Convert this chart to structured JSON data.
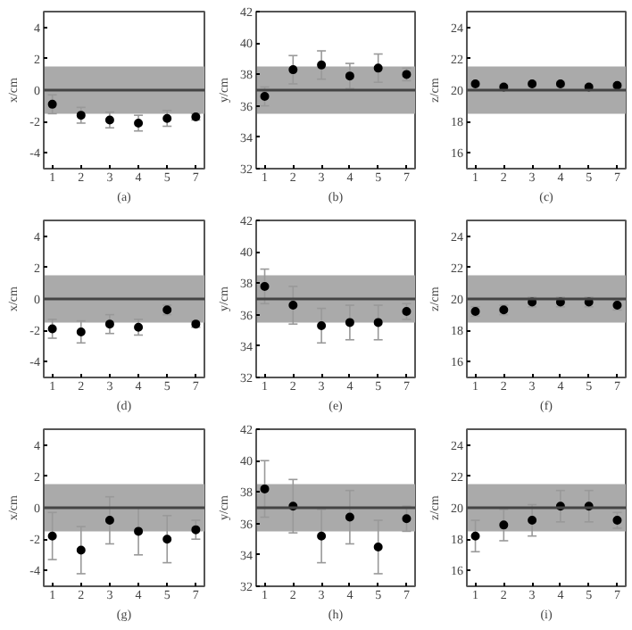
{
  "chart_data": [
    {
      "type": "scatter",
      "xlabel": "(a)",
      "ylabel": "x/cm",
      "categories": [
        "1",
        "2",
        "3",
        "4",
        "5",
        "7"
      ],
      "color": "#000000",
      "marker": "circle",
      "values": [
        -0.9,
        -1.6,
        -1.9,
        -2.1,
        -1.8,
        -1.7
      ],
      "errors": [
        0.6,
        0.5,
        0.5,
        0.5,
        0.5,
        0.2
      ],
      "ylim": [
        -5,
        5
      ],
      "yticks": [
        -4,
        -2,
        0,
        2,
        4
      ],
      "bands": [
        {
          "axis": "y",
          "from": -1.5,
          "to": 1.5,
          "color": "#aaaaaa"
        }
      ],
      "ref_lines": [
        {
          "axis": "y",
          "value": 0,
          "color": "#444444"
        }
      ]
    },
    {
      "type": "scatter",
      "xlabel": "(b)",
      "ylabel": "y/cm",
      "categories": [
        "1",
        "2",
        "3",
        "4",
        "5",
        "7"
      ],
      "color": "#000000",
      "marker": "circle",
      "values": [
        36.6,
        38.3,
        38.6,
        37.9,
        38.4,
        38.0
      ],
      "errors": [
        0.6,
        0.9,
        0.9,
        0.8,
        0.9,
        0.4
      ],
      "ylim": [
        32,
        42
      ],
      "yticks": [
        32,
        34,
        36,
        38,
        40,
        42
      ],
      "bands": [
        {
          "axis": "y",
          "from": 35.5,
          "to": 38.5,
          "color": "#aaaaaa"
        }
      ],
      "ref_lines": [
        {
          "axis": "y",
          "value": 37,
          "color": "#444444"
        }
      ]
    },
    {
      "type": "scatter",
      "xlabel": "(c)",
      "ylabel": "z/cm",
      "categories": [
        "1",
        "2",
        "3",
        "4",
        "5",
        "7"
      ],
      "color": "#000000",
      "marker": "circle",
      "values": [
        20.4,
        20.2,
        20.4,
        20.4,
        20.2,
        20.3
      ],
      "errors": [
        0.15,
        0.15,
        0.15,
        0.15,
        0.15,
        0.15
      ],
      "ylim": [
        15,
        25
      ],
      "yticks": [
        16,
        18,
        20,
        22,
        24
      ],
      "bands": [
        {
          "axis": "y",
          "from": 18.5,
          "to": 21.5,
          "color": "#aaaaaa"
        }
      ],
      "ref_lines": [
        {
          "axis": "y",
          "value": 20,
          "color": "#444444"
        }
      ]
    },
    {
      "type": "scatter",
      "xlabel": "(d)",
      "ylabel": "x/cm",
      "categories": [
        "1",
        "2",
        "3",
        "4",
        "5",
        "7"
      ],
      "color": "#000000",
      "marker": "circle",
      "values": [
        -1.9,
        -2.1,
        -1.6,
        -1.8,
        -0.7,
        -1.6
      ],
      "errors": [
        0.6,
        0.7,
        0.6,
        0.5,
        0.3,
        0.2
      ],
      "ylim": [
        -5,
        5
      ],
      "yticks": [
        -4,
        -2,
        0,
        2,
        4
      ],
      "bands": [
        {
          "axis": "y",
          "from": -1.5,
          "to": 1.5,
          "color": "#aaaaaa"
        }
      ],
      "ref_lines": [
        {
          "axis": "y",
          "value": 0,
          "color": "#444444"
        }
      ]
    },
    {
      "type": "scatter",
      "xlabel": "(e)",
      "ylabel": "y/cm",
      "categories": [
        "1",
        "2",
        "3",
        "4",
        "5",
        "7"
      ],
      "color": "#000000",
      "marker": "circle",
      "values": [
        37.8,
        36.6,
        35.3,
        35.5,
        35.5,
        36.2
      ],
      "errors": [
        1.1,
        1.2,
        1.1,
        1.1,
        1.1,
        0.5
      ],
      "ylim": [
        32,
        42
      ],
      "yticks": [
        32,
        34,
        36,
        38,
        40,
        42
      ],
      "bands": [
        {
          "axis": "y",
          "from": 35.5,
          "to": 38.5,
          "color": "#aaaaaa"
        }
      ],
      "ref_lines": [
        {
          "axis": "y",
          "value": 37,
          "color": "#444444"
        }
      ]
    },
    {
      "type": "scatter",
      "xlabel": "(f)",
      "ylabel": "z/cm",
      "categories": [
        "1",
        "2",
        "3",
        "4",
        "5",
        "7"
      ],
      "color": "#000000",
      "marker": "circle",
      "values": [
        19.2,
        19.3,
        19.8,
        19.8,
        19.8,
        19.6
      ],
      "errors": [
        0.3,
        0.3,
        0.3,
        0.3,
        0.3,
        0.3
      ],
      "ylim": [
        15,
        25
      ],
      "yticks": [
        16,
        18,
        20,
        22,
        24
      ],
      "bands": [
        {
          "axis": "y",
          "from": 18.5,
          "to": 21.5,
          "color": "#aaaaaa"
        }
      ],
      "ref_lines": [
        {
          "axis": "y",
          "value": 20,
          "color": "#444444"
        }
      ]
    },
    {
      "type": "scatter",
      "xlabel": "(g)",
      "ylabel": "x/cm",
      "categories": [
        "1",
        "2",
        "3",
        "4",
        "5",
        "7"
      ],
      "color": "#000000",
      "marker": "circle",
      "values": [
        -1.8,
        -2.7,
        -0.8,
        -1.5,
        -2.0,
        -1.4
      ],
      "errors": [
        1.5,
        1.5,
        1.5,
        1.5,
        1.5,
        0.6
      ],
      "ylim": [
        -5,
        5
      ],
      "yticks": [
        -4,
        -2,
        0,
        2,
        4
      ],
      "bands": [
        {
          "axis": "y",
          "from": -1.5,
          "to": 1.5,
          "color": "#aaaaaa"
        }
      ],
      "ref_lines": [
        {
          "axis": "y",
          "value": 0,
          "color": "#444444"
        }
      ]
    },
    {
      "type": "scatter",
      "xlabel": "(h)",
      "ylabel": "y/cm",
      "categories": [
        "1",
        "2",
        "3",
        "4",
        "5",
        "7"
      ],
      "color": "#000000",
      "marker": "circle",
      "values": [
        38.2,
        37.1,
        35.2,
        36.4,
        34.5,
        36.3
      ],
      "errors": [
        1.8,
        1.7,
        1.7,
        1.7,
        1.7,
        0.8
      ],
      "ylim": [
        32,
        42
      ],
      "yticks": [
        32,
        34,
        36,
        38,
        40,
        42
      ],
      "bands": [
        {
          "axis": "y",
          "from": 35.5,
          "to": 38.5,
          "color": "#aaaaaa"
        }
      ],
      "ref_lines": [
        {
          "axis": "y",
          "value": 37,
          "color": "#444444"
        }
      ]
    },
    {
      "type": "scatter",
      "xlabel": "(i)",
      "ylabel": "z/cm",
      "categories": [
        "1",
        "2",
        "3",
        "4",
        "5",
        "7"
      ],
      "color": "#000000",
      "marker": "circle",
      "values": [
        18.2,
        18.9,
        19.2,
        20.1,
        20.1,
        19.2
      ],
      "errors": [
        1.0,
        1.0,
        1.0,
        1.0,
        1.0,
        0.5
      ],
      "ylim": [
        15,
        25
      ],
      "yticks": [
        16,
        18,
        20,
        22,
        24
      ],
      "bands": [
        {
          "axis": "y",
          "from": 18.5,
          "to": 21.5,
          "color": "#aaaaaa"
        }
      ],
      "ref_lines": [
        {
          "axis": "y",
          "value": 20,
          "color": "#444444"
        }
      ]
    }
  ]
}
